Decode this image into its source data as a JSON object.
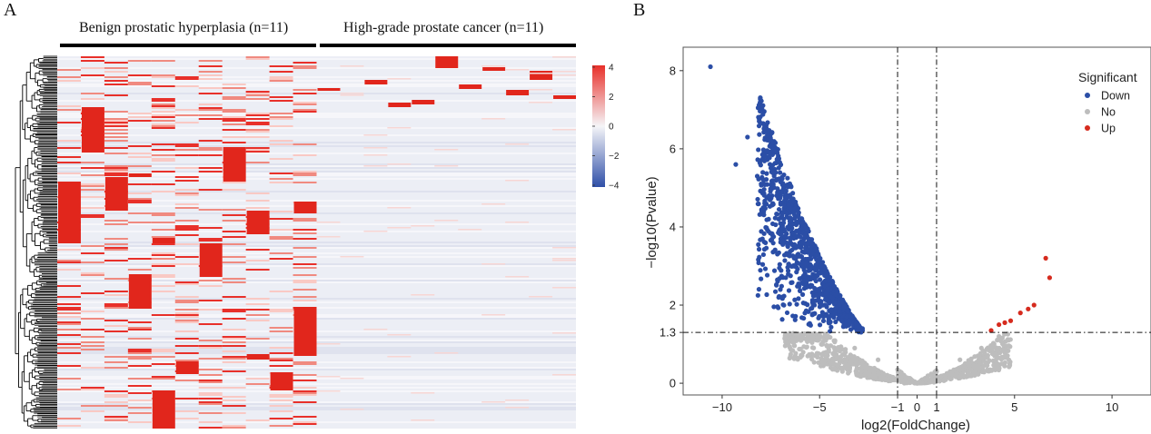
{
  "panel_a": {
    "letter": "A",
    "group1_label": "Benign prostatic hyperplasia (n=11)",
    "group2_label": "High-grade prostate cancer (n=11)",
    "colorbar": {
      "ticks": [
        "4",
        "2",
        "0",
        "−2",
        "−4"
      ],
      "colors": {
        "high": "#e8302a",
        "mid": "#f5f5f8",
        "low": "#2f4fa8"
      }
    }
  },
  "panel_b": {
    "letter": "B",
    "colors": {
      "down": "#2b4ea6",
      "no": "#bdbdbd",
      "up": "#d62b1e"
    }
  },
  "chart_data": [
    {
      "type": "heatmap",
      "title": "",
      "columns": 22,
      "column_groups": [
        {
          "name": "Benign prostatic hyperplasia (n=11)",
          "count": 11
        },
        {
          "name": "High-grade prostate cancer (n=11)",
          "count": 11
        }
      ],
      "color_range": [
        -4,
        4
      ],
      "colorbar_ticks": [
        4,
        2,
        0,
        -2,
        -4
      ],
      "dendrogram": "rows"
    },
    {
      "type": "scatter",
      "title": "",
      "xlabel": "log2(FoldChange)",
      "ylabel": "−log10(Pvalue)",
      "xlim": [
        -12,
        12
      ],
      "ylim": [
        -0.3,
        8.6
      ],
      "x_ticks": [
        "−10",
        "−5",
        "0",
        "5",
        "10"
      ],
      "x_extra_ticks": [
        "−1",
        "1"
      ],
      "y_ticks": [
        "0",
        "2",
        "4",
        "6",
        "8"
      ],
      "y_extra_ticks": [
        "1.3"
      ],
      "thresholds": {
        "x": [
          -1,
          1
        ],
        "y": 1.3
      },
      "legend_title": "Significant",
      "legend_placement": "top-right",
      "series": [
        {
          "name": "Down",
          "color": "#2b4ea6",
          "points": [
            [
              -10.6,
              8.1
            ],
            [
              -8.7,
              6.3
            ],
            [
              -9.3,
              5.6
            ],
            [
              -8.2,
              5.3
            ],
            [
              -8.0,
              5.1
            ],
            [
              -7.6,
              4.8
            ],
            [
              -7.1,
              4.2
            ],
            [
              -6.5,
              3.6
            ],
            [
              -5.9,
              3.1
            ],
            [
              -5.3,
              2.7
            ],
            [
              -4.7,
              2.3
            ],
            [
              -4.0,
              2.0
            ],
            [
              -3.5,
              1.6
            ],
            [
              -2.8,
              1.4
            ]
          ]
        },
        {
          "name": "No",
          "color": "#bdbdbd",
          "points": [
            [
              -4.6,
              1.2
            ],
            [
              -3.2,
              0.9
            ],
            [
              -2.0,
              0.6
            ],
            [
              -1.0,
              0.35
            ],
            [
              0.0,
              0.0
            ],
            [
              1.0,
              0.3
            ],
            [
              2.2,
              0.6
            ],
            [
              3.3,
              0.9
            ],
            [
              4.2,
              1.2
            ]
          ]
        },
        {
          "name": "Up",
          "color": "#d62b1e",
          "points": [
            [
              3.8,
              1.35
            ],
            [
              4.2,
              1.5
            ],
            [
              4.5,
              1.55
            ],
            [
              4.8,
              1.6
            ],
            [
              5.3,
              1.8
            ],
            [
              5.7,
              1.9
            ],
            [
              6.0,
              2.0
            ],
            [
              6.8,
              2.7
            ],
            [
              6.6,
              3.2
            ]
          ]
        }
      ]
    }
  ]
}
